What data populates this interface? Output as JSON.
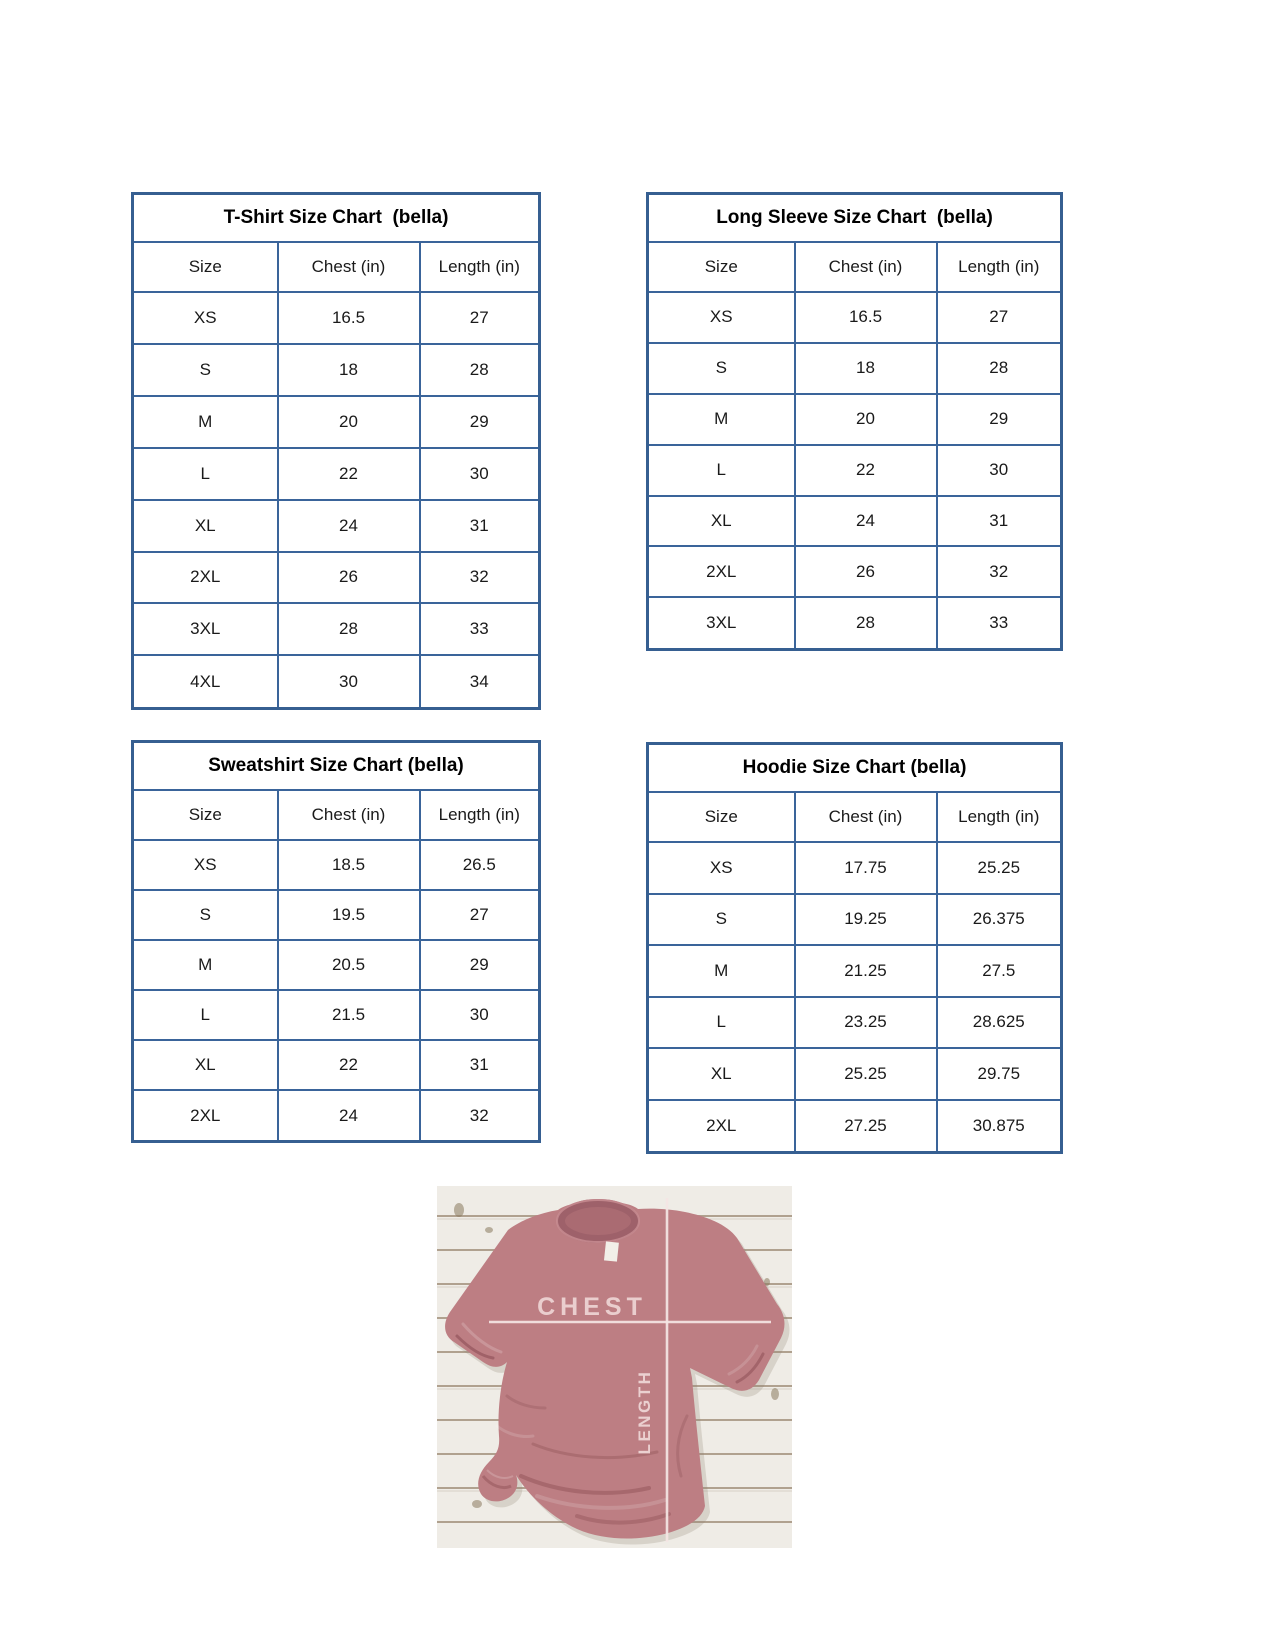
{
  "page": {
    "background": "#ffffff"
  },
  "colors": {
    "table_border": "#365f91",
    "cell_text": "#1a1a1a",
    "title_text": "#000000",
    "shirt": "#bd7e83",
    "measure_line": "#f5e6e4"
  },
  "tables": [
    {
      "title": "T-Shirt Size Chart  (bella)",
      "headers": [
        "Size",
        "Chest (in)",
        "Length (in)"
      ],
      "rows": [
        [
          "XS",
          "16.5",
          "27"
        ],
        [
          "S",
          "18",
          "28"
        ],
        [
          "M",
          "20",
          "29"
        ],
        [
          "L",
          "22",
          "30"
        ],
        [
          "XL",
          "24",
          "31"
        ],
        [
          "2XL",
          "26",
          "32"
        ],
        [
          "3XL",
          "28",
          "33"
        ],
        [
          "4XL",
          "30",
          "34"
        ]
      ]
    },
    {
      "title": "Long Sleeve Size Chart  (bella)",
      "headers": [
        "Size",
        "Chest (in)",
        "Length (in)"
      ],
      "rows": [
        [
          "XS",
          "16.5",
          "27"
        ],
        [
          "S",
          "18",
          "28"
        ],
        [
          "M",
          "20",
          "29"
        ],
        [
          "L",
          "22",
          "30"
        ],
        [
          "XL",
          "24",
          "31"
        ],
        [
          "2XL",
          "26",
          "32"
        ],
        [
          "3XL",
          "28",
          "33"
        ]
      ]
    },
    {
      "title": "Sweatshirt Size Chart (bella)",
      "headers": [
        "Size",
        "Chest (in)",
        "Length (in)"
      ],
      "rows": [
        [
          "XS",
          "18.5",
          "26.5"
        ],
        [
          "S",
          "19.5",
          "27"
        ],
        [
          "M",
          "20.5",
          "29"
        ],
        [
          "L",
          "21.5",
          "30"
        ],
        [
          "XL",
          "22",
          "31"
        ],
        [
          "2XL",
          "24",
          "32"
        ]
      ]
    },
    {
      "title": "Hoodie Size Chart (bella)",
      "headers": [
        "Size",
        "Chest (in)",
        "Length (in)"
      ],
      "rows": [
        [
          "XS",
          "17.75",
          "25.25"
        ],
        [
          "S",
          "19.25",
          "26.375"
        ],
        [
          "M",
          "21.25",
          "27.5"
        ],
        [
          "L",
          "23.25",
          "28.625"
        ],
        [
          "XL",
          "25.25",
          "29.75"
        ],
        [
          "2XL",
          "27.25",
          "30.875"
        ]
      ]
    }
  ],
  "size_image": {
    "chest_label": "CHEST",
    "length_label": "LENGTH"
  }
}
